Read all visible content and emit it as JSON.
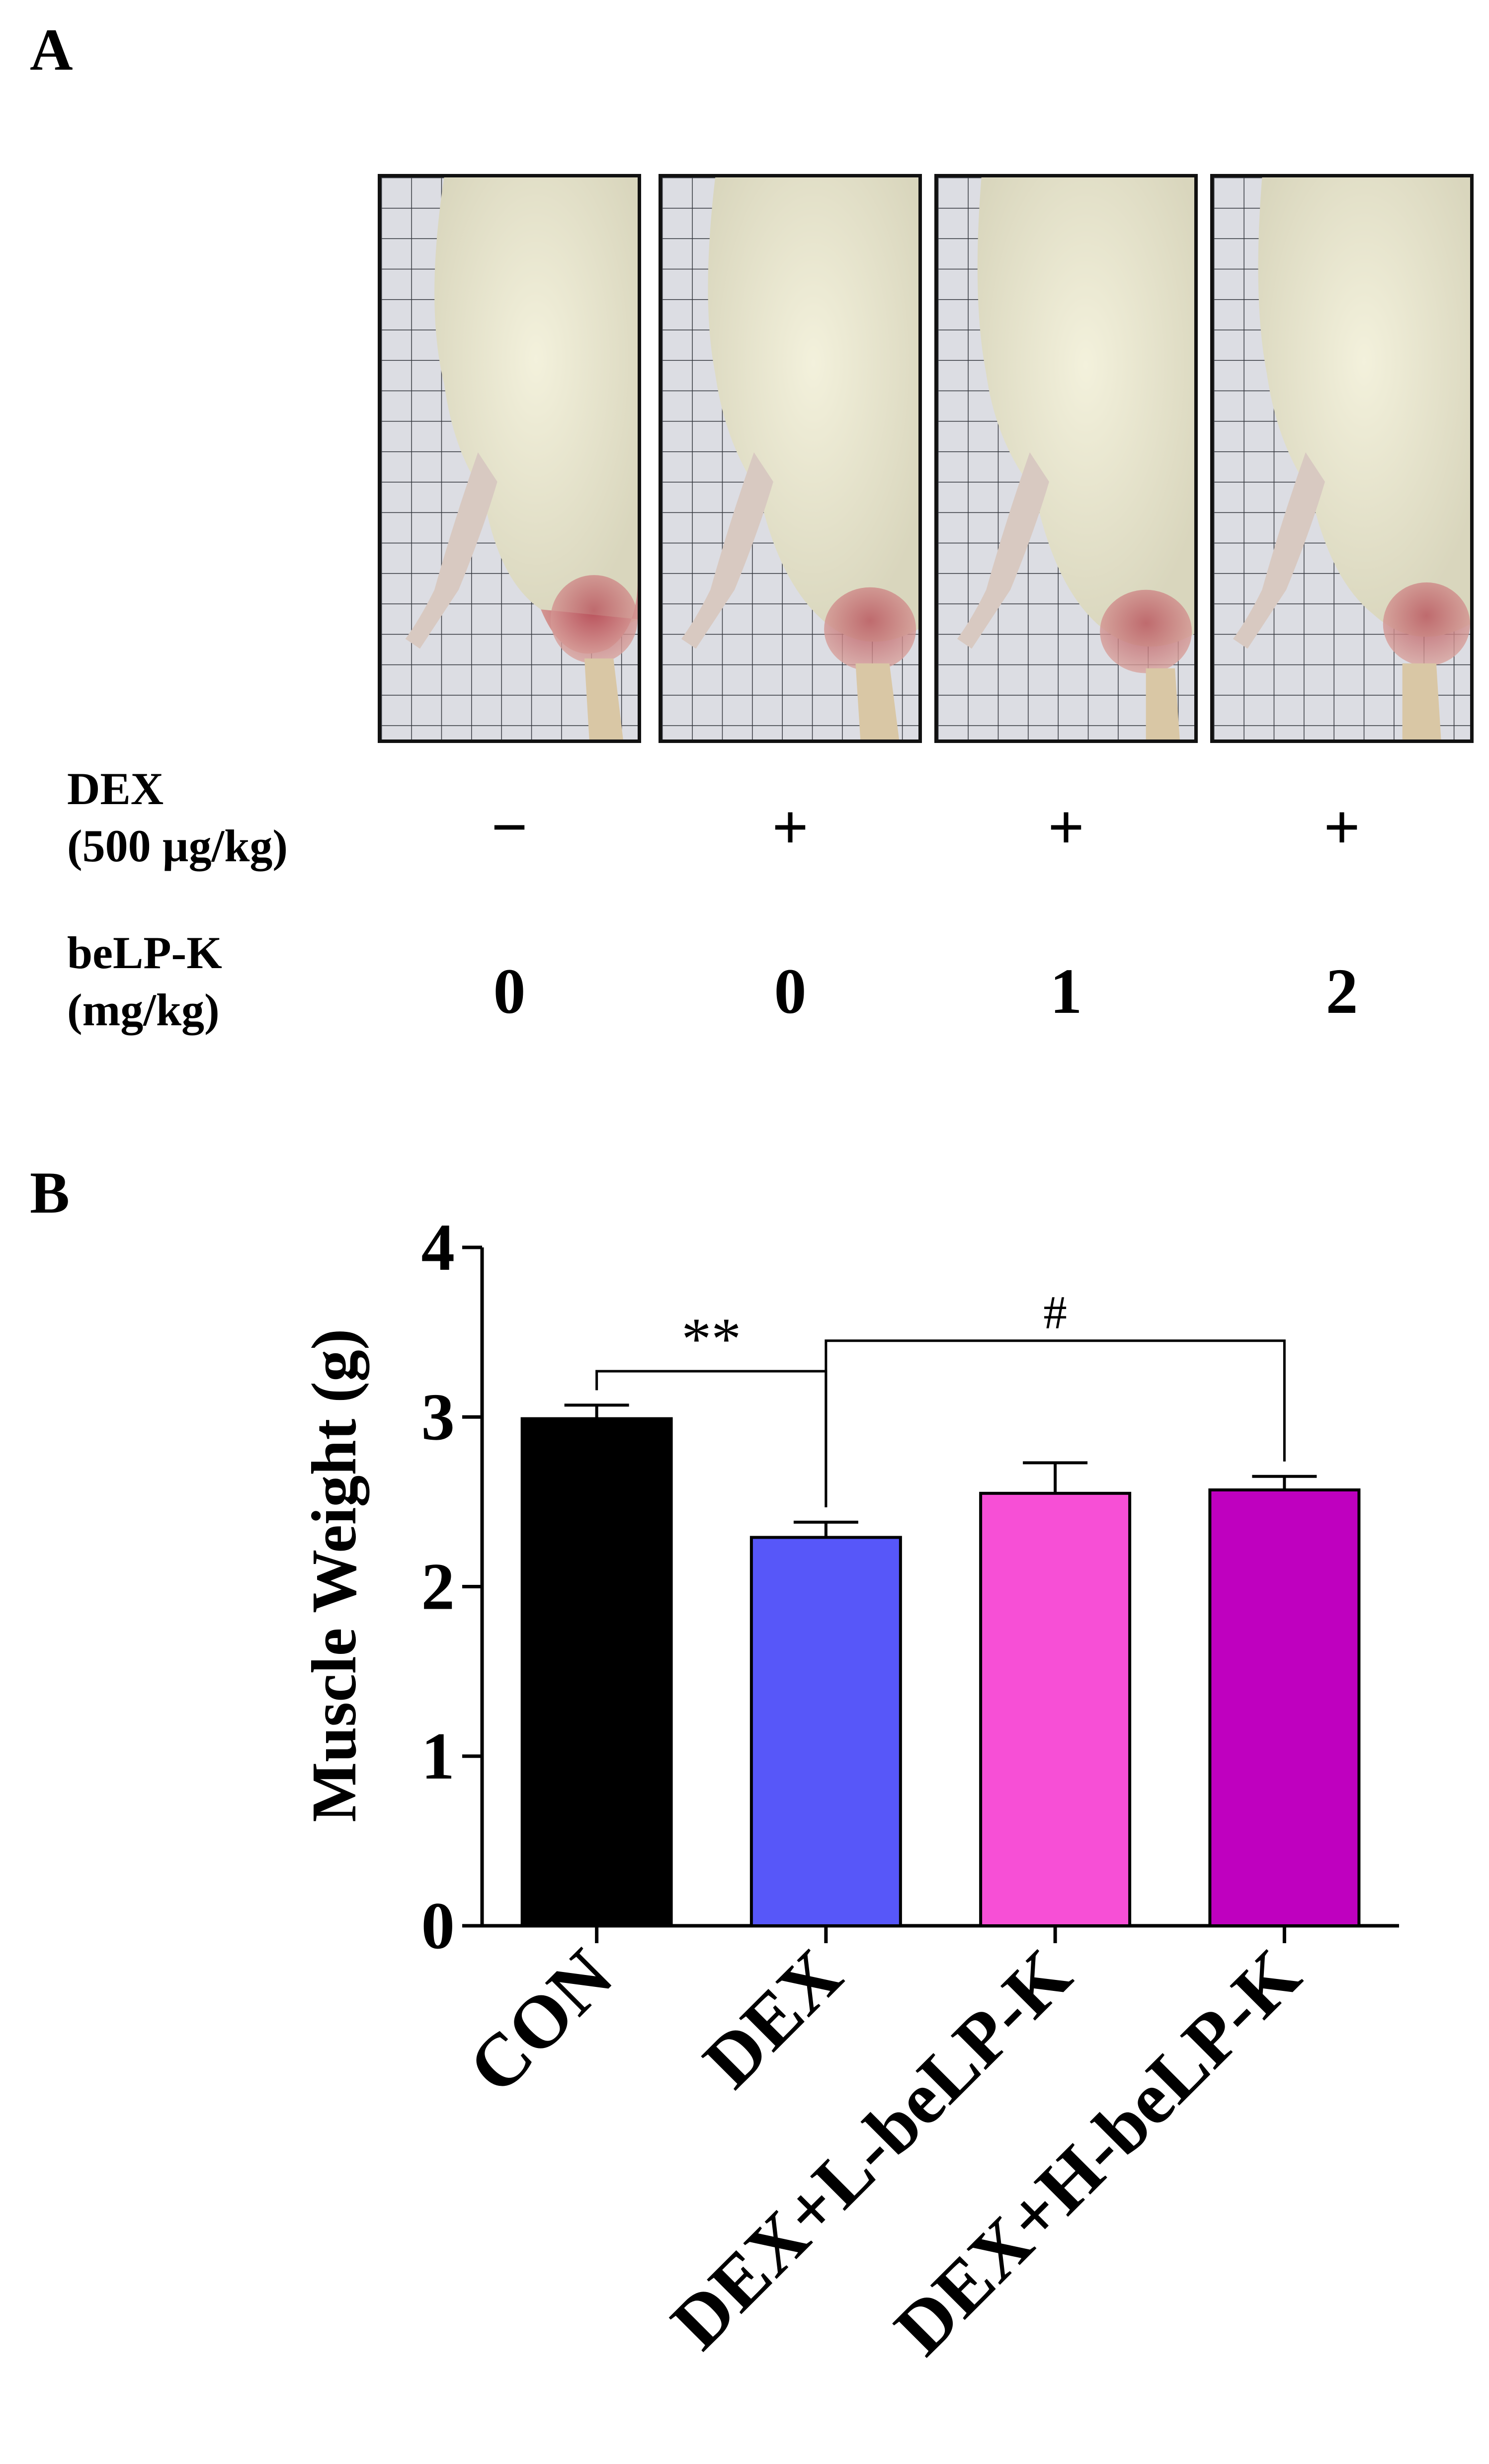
{
  "panel_a": {
    "letter": "A",
    "rows": [
      {
        "label_line1": "DEX",
        "label_line2": "(500 µg/kg)",
        "values": [
          "−",
          "+",
          "+",
          "+"
        ]
      },
      {
        "label_line1": "beLP-K",
        "label_line2": "(mg/kg)",
        "values": [
          "0",
          "0",
          "1",
          "2"
        ]
      }
    ],
    "photos": [
      "rat-hindlimb-photo",
      "rat-hindlimb-photo",
      "rat-hindlimb-photo",
      "rat-hindlimb-photo"
    ]
  },
  "panel_b": {
    "letter": "B"
  },
  "chart_data": {
    "type": "bar",
    "ylabel": "Muscle Weight (g)",
    "xlabel": "",
    "ylim": [
      0,
      4
    ],
    "yticks": [
      "0",
      "1",
      "2",
      "3",
      "4"
    ],
    "categories": [
      "CON",
      "DEX",
      "DEX+L-beLP-K",
      "DEX+H-beLP-K"
    ],
    "values": [
      2.99,
      2.29,
      2.55,
      2.57
    ],
    "errors": [
      0.08,
      0.09,
      0.18,
      0.08
    ],
    "colors": [
      "#000000",
      "#5757f9",
      "#f74fd6",
      "#bf00bf"
    ],
    "significance": [
      {
        "between": [
          "CON",
          "DEX"
        ],
        "label": "**"
      },
      {
        "between": [
          "DEX",
          "DEX+H-beLP-K"
        ],
        "label": "#"
      }
    ]
  }
}
